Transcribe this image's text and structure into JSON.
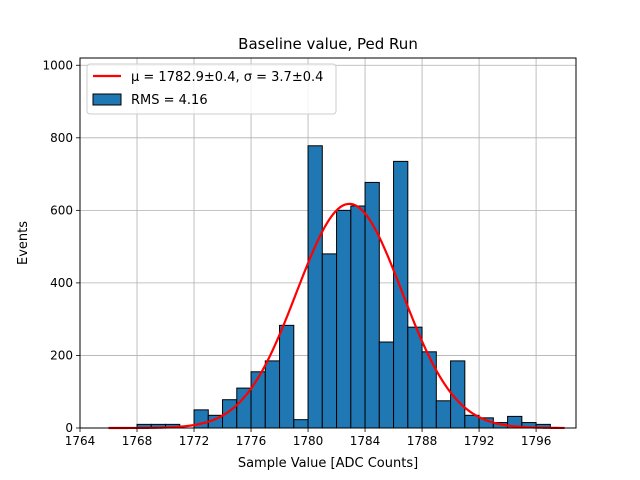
{
  "chart_data": {
    "type": "bar",
    "title": "Baseline value, Ped Run",
    "xlabel": "Sample Value [ADC Counts]",
    "ylabel": "Events",
    "xlim": [
      1764,
      1798.8
    ],
    "ylim": [
      0,
      1020
    ],
    "xticks": [
      1764,
      1768,
      1772,
      1776,
      1780,
      1784,
      1788,
      1792,
      1796
    ],
    "yticks": [
      0,
      200,
      400,
      600,
      800,
      1000
    ],
    "grid": true,
    "legend_position": "top-left",
    "histogram": {
      "name": "RMS = 4.16",
      "bin_width": 1,
      "bin_starts": [
        1768,
        1769,
        1770,
        1771,
        1772,
        1773,
        1774,
        1775,
        1776,
        1777,
        1778,
        1779,
        1780,
        1781,
        1782,
        1783,
        1784,
        1785,
        1786,
        1787,
        1788,
        1789,
        1790,
        1791,
        1792,
        1793,
        1794,
        1795,
        1796
      ],
      "values": [
        10,
        10,
        10,
        0,
        50,
        35,
        78,
        110,
        155,
        185,
        283,
        23,
        778,
        480,
        600,
        612,
        677,
        237,
        735,
        278,
        210,
        75,
        185,
        35,
        28,
        15,
        32,
        15,
        10
      ],
      "color": "#1f77b4"
    },
    "fit": {
      "name": "μ = 1782.9±0.4, σ = 3.7±0.4",
      "type": "gaussian",
      "mu": 1782.9,
      "sigma": 3.7,
      "amplitude": 618,
      "x_range": [
        1766,
        1798
      ],
      "color": "#ff0000"
    },
    "legend": [
      {
        "label": "μ = 1782.9±0.4, σ = 3.7±0.4",
        "kind": "line",
        "color": "#ff0000"
      },
      {
        "label": "RMS = 4.16",
        "kind": "patch",
        "color": "#1f77b4"
      }
    ]
  }
}
